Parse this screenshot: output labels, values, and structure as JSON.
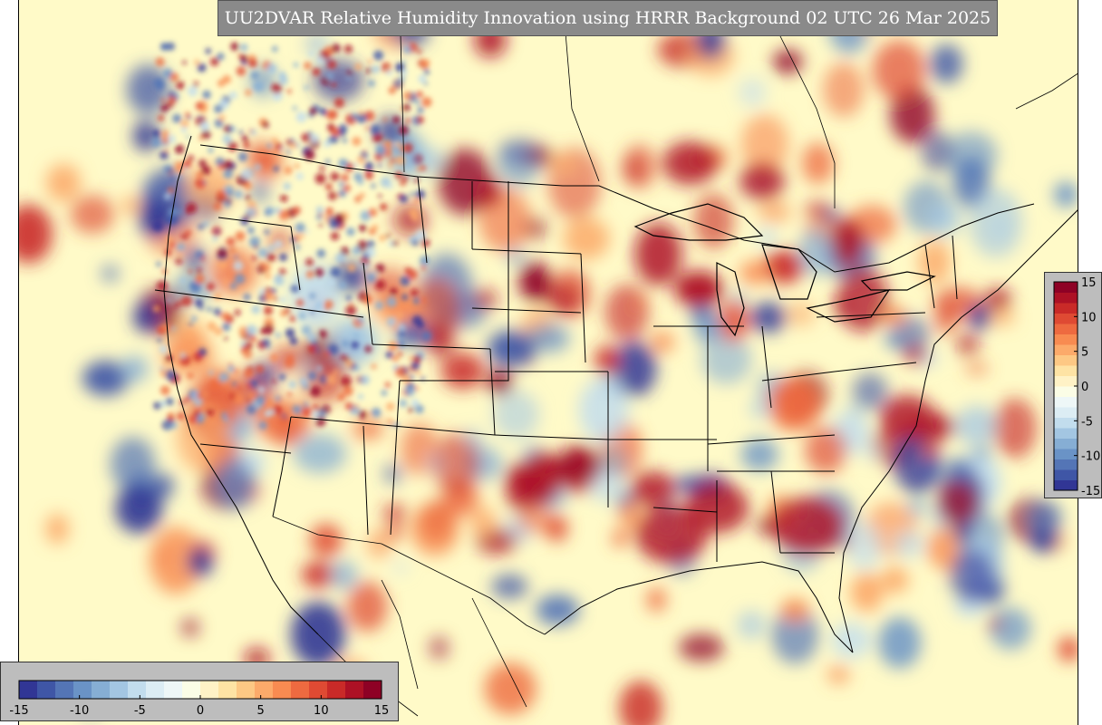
{
  "title": "UU2DVAR Relative Humidity Innovation using HRRR Background 02 UTC 26 Mar 2025",
  "colorbar": {
    "min": -15,
    "max": 15,
    "vertical_ticks": [
      "15",
      "10",
      "5",
      "0",
      "-5",
      "-10",
      "-15"
    ],
    "horizontal_ticks": [
      "-15",
      "-10",
      "-5",
      "0",
      "5",
      "10",
      "15"
    ],
    "colors": [
      "#313695",
      "#3f56a6",
      "#5475b6",
      "#6a93c6",
      "#86aed4",
      "#a3c6e2",
      "#c2dded",
      "#dcedf4",
      "#eef7f7",
      "#fbfde6",
      "#fff2c6",
      "#fee3a4",
      "#fdc884",
      "#fcaa6a",
      "#f88b51",
      "#ee6a40",
      "#df4a33",
      "#c92a28",
      "#ad1125",
      "#8e0125"
    ]
  }
}
